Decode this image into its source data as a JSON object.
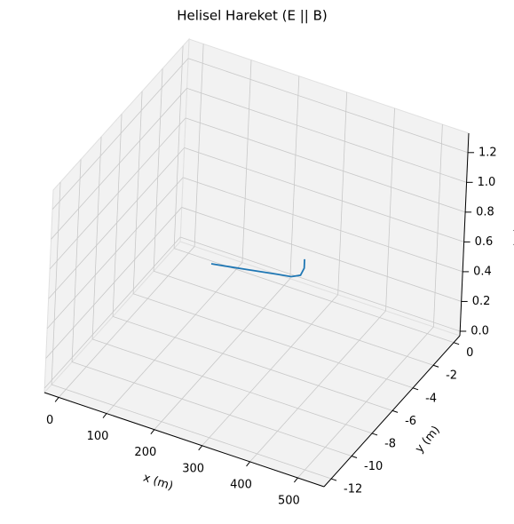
{
  "chart_data": {
    "type": "line3d",
    "title": "Helisel Hareket (E || B)",
    "xlabel": "x (m)",
    "ylabel": "y (m)",
    "zlabel": "z (m)",
    "x": [
      58,
      90,
      120,
      150,
      180,
      205,
      222,
      230,
      232
    ],
    "y": [
      -0.5,
      -0.3,
      -0.1,
      0.1,
      0.3,
      0.45,
      0.55,
      0.5,
      0.4
    ],
    "z": [
      0,
      0,
      0,
      0,
      0,
      0,
      0.02,
      0.08,
      0.15
    ],
    "color": "#1f77b4",
    "xlim": [
      -30,
      555
    ],
    "ylim": [
      -12.7,
      0.6
    ],
    "zlim": [
      -0.03,
      1.33
    ],
    "xticks": [
      0,
      100,
      200,
      300,
      400,
      500
    ],
    "yticks": [
      0,
      -2,
      -4,
      -6,
      -8,
      -10,
      -12
    ],
    "zticks": [
      {
        "value": 0,
        "label": "0.0"
      },
      0.2,
      0.4,
      0.6,
      0.8,
      {
        "value": 1,
        "label": "1.0"
      },
      1.2
    ],
    "grid": true
  }
}
